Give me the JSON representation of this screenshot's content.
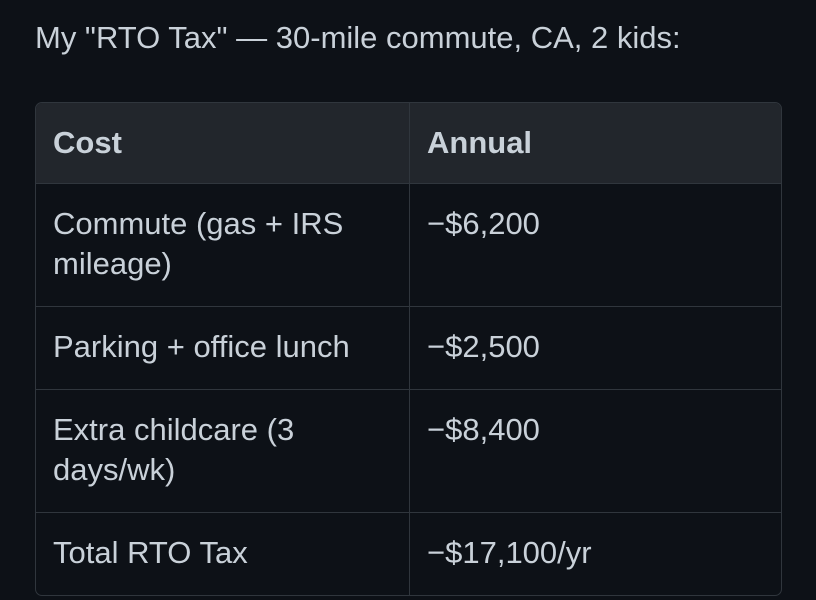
{
  "title": "My \"RTO Tax\" — 30-mile commute, CA, 2 kids:",
  "table": {
    "headers": [
      "Cost",
      "Annual"
    ],
    "rows": [
      {
        "cost": "Commute (gas + IRS mileage)",
        "annual": "−$6,200"
      },
      {
        "cost": "Parking + office lunch",
        "annual": "−$2,500"
      },
      {
        "cost": "Extra childcare (3 days/wk)",
        "annual": "−$8,400"
      },
      {
        "cost": "Total RTO Tax",
        "annual": "−$17,100/yr"
      }
    ]
  }
}
